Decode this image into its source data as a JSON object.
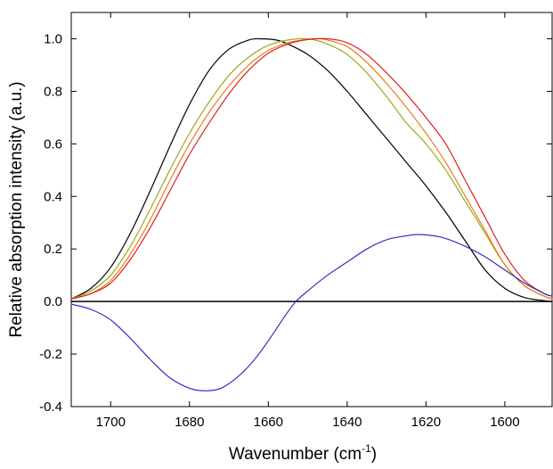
{
  "chart_data": {
    "type": "line",
    "title": "",
    "xlabel": "Wavenumber (cm",
    "xlabel_superscript": "-1",
    "xlabel_suffix": ")",
    "ylabel": "Relative absorption intensity (a.u.)",
    "xlim": [
      1710,
      1588
    ],
    "x_reversed": true,
    "ylim": [
      -0.4,
      1.1
    ],
    "grid": false,
    "legend": "none",
    "x_ticks": [
      "1700",
      "1680",
      "1660",
      "1640",
      "1620",
      "1600"
    ],
    "x_tick_values": [
      1700,
      1680,
      1660,
      1640,
      1620,
      1600
    ],
    "y_ticks": [
      "-0.4",
      "-0.2",
      "0.0",
      "0.2",
      "0.4",
      "0.6",
      "0.8",
      "1.0"
    ],
    "y_tick_values": [
      -0.4,
      -0.2,
      0.0,
      0.2,
      0.4,
      0.6,
      0.8,
      1.0
    ],
    "zero_line": 0.0,
    "series": [
      {
        "color": "#000000",
        "x": [
          1710,
          1705,
          1700,
          1695,
          1690,
          1685,
          1680,
          1675,
          1670,
          1665,
          1662,
          1658,
          1655,
          1650,
          1645,
          1640,
          1635,
          1630,
          1625,
          1620,
          1615,
          1610,
          1605,
          1600,
          1595,
          1590,
          1588
        ],
        "values": [
          0.01,
          0.05,
          0.13,
          0.26,
          0.42,
          0.59,
          0.75,
          0.88,
          0.96,
          0.995,
          1.0,
          0.995,
          0.98,
          0.94,
          0.88,
          0.8,
          0.71,
          0.62,
          0.53,
          0.44,
          0.34,
          0.23,
          0.12,
          0.05,
          0.015,
          0.003,
          0.0
        ]
      },
      {
        "color": "#9aaa1e",
        "x": [
          1710,
          1705,
          1700,
          1695,
          1690,
          1685,
          1680,
          1675,
          1670,
          1665,
          1660,
          1655,
          1650,
          1645,
          1640,
          1635,
          1630,
          1625,
          1620,
          1615,
          1610,
          1605,
          1600,
          1595,
          1590,
          1588
        ],
        "values": [
          0.01,
          0.04,
          0.1,
          0.21,
          0.35,
          0.5,
          0.64,
          0.76,
          0.86,
          0.93,
          0.975,
          0.995,
          1.0,
          0.98,
          0.94,
          0.87,
          0.78,
          0.68,
          0.6,
          0.5,
          0.38,
          0.26,
          0.14,
          0.06,
          0.02,
          0.01
        ]
      },
      {
        "color": "#f07a1a",
        "x": [
          1710,
          1705,
          1700,
          1695,
          1690,
          1685,
          1680,
          1675,
          1670,
          1665,
          1660,
          1655,
          1650,
          1647,
          1645,
          1640,
          1635,
          1630,
          1625,
          1620,
          1615,
          1610,
          1605,
          1600,
          1595,
          1590,
          1588
        ],
        "values": [
          0.01,
          0.03,
          0.08,
          0.18,
          0.31,
          0.46,
          0.6,
          0.72,
          0.82,
          0.9,
          0.955,
          0.985,
          0.998,
          1.0,
          0.995,
          0.97,
          0.91,
          0.83,
          0.74,
          0.64,
          0.53,
          0.4,
          0.27,
          0.14,
          0.06,
          0.02,
          0.01
        ]
      },
      {
        "color": "#e0201e",
        "x": [
          1710,
          1705,
          1700,
          1695,
          1690,
          1685,
          1680,
          1675,
          1670,
          1665,
          1660,
          1655,
          1650,
          1645,
          1640,
          1635,
          1630,
          1625,
          1620,
          1615,
          1610,
          1605,
          1600,
          1595,
          1590,
          1588
        ],
        "values": [
          0.01,
          0.03,
          0.07,
          0.16,
          0.28,
          0.42,
          0.56,
          0.68,
          0.79,
          0.88,
          0.945,
          0.98,
          0.997,
          1.0,
          0.985,
          0.94,
          0.87,
          0.79,
          0.7,
          0.6,
          0.46,
          0.32,
          0.18,
          0.08,
          0.03,
          0.02
        ]
      },
      {
        "color": "#3030c0",
        "x": [
          1710,
          1705,
          1700,
          1695,
          1690,
          1685,
          1680,
          1676,
          1672,
          1668,
          1664,
          1660,
          1656,
          1653,
          1650,
          1645,
          1640,
          1635,
          1630,
          1625,
          1622,
          1618,
          1615,
          1610,
          1605,
          1600,
          1595,
          1590,
          1588
        ],
        "values": [
          -0.01,
          -0.03,
          -0.07,
          -0.14,
          -0.22,
          -0.29,
          -0.33,
          -0.34,
          -0.33,
          -0.29,
          -0.23,
          -0.15,
          -0.06,
          0.0,
          0.04,
          0.1,
          0.15,
          0.2,
          0.235,
          0.25,
          0.255,
          0.25,
          0.24,
          0.21,
          0.17,
          0.12,
          0.07,
          0.03,
          0.02
        ]
      }
    ]
  }
}
